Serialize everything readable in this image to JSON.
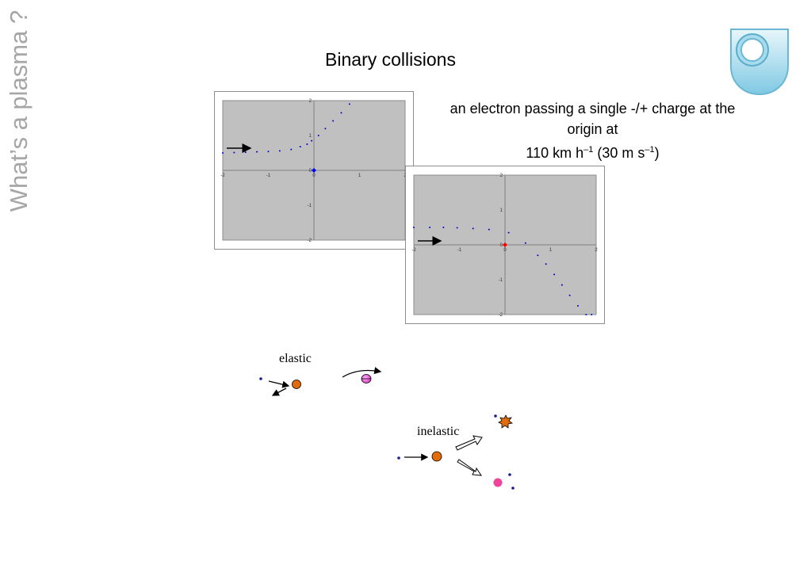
{
  "sidebar": {
    "title": "What’s a plasma ?"
  },
  "header": {
    "title": "Binary collisions"
  },
  "description": {
    "line1": "an electron passing a single -/+ charge at the",
    "line2": "origin at",
    "line3_main": "110 km h",
    "line3_exp1": "–1",
    "line3_mid": " (30 m s",
    "line3_exp2": "–1",
    "line3_end": ")"
  },
  "logo": {
    "icon": "open-university-shield-icon"
  },
  "chart_data": [
    {
      "type": "scatter",
      "title": "",
      "xlim": [
        -2,
        2
      ],
      "ylim": [
        -2,
        2
      ],
      "x_ticks": [
        "-2",
        "-1",
        "0",
        "1",
        "2"
      ],
      "y_ticks": [
        "2",
        "1",
        "0",
        "-1",
        "-2"
      ],
      "plot_bg": "#c0c0c0",
      "series": [
        {
          "color": "#0000cc",
          "x": [
            -2.0,
            -1.75,
            -1.5,
            -1.25,
            -1.0,
            -0.75,
            -0.5,
            -0.3,
            -0.15,
            -0.05,
            0.1,
            0.25,
            0.42,
            0.6,
            0.78
          ],
          "y": [
            0.5,
            0.51,
            0.52,
            0.53,
            0.54,
            0.56,
            0.6,
            0.68,
            0.75,
            0.85,
            1.0,
            1.2,
            1.42,
            1.65,
            1.9
          ]
        },
        {
          "color": "#0000ff",
          "x": [
            0
          ],
          "y": [
            0
          ]
        }
      ]
    },
    {
      "type": "scatter",
      "title": "",
      "xlim": [
        -2,
        2
      ],
      "ylim": [
        -2,
        2
      ],
      "x_ticks": [
        "-2",
        "-1",
        "0",
        "1",
        "2"
      ],
      "y_ticks": [
        "2",
        "1",
        "0",
        "-1",
        "-2"
      ],
      "plot_bg": "#c0c0c0",
      "series": [
        {
          "color": "#0000cc",
          "x": [
            -2.0,
            -1.65,
            -1.35,
            -1.05,
            -0.7,
            -0.35,
            0.08,
            0.45,
            0.72,
            0.9,
            1.08,
            1.25,
            1.42,
            1.6,
            1.78,
            1.9
          ],
          "y": [
            0.5,
            0.5,
            0.5,
            0.49,
            0.47,
            0.44,
            0.35,
            0.05,
            -0.3,
            -0.55,
            -0.85,
            -1.15,
            -1.45,
            -1.75,
            -2.0,
            -2.0
          ]
        },
        {
          "color": "#ff0000",
          "x": [
            0
          ],
          "y": [
            0
          ]
        }
      ]
    }
  ],
  "diagram": {
    "elastic_label": "elastic",
    "inelastic_label": "inelastic",
    "colors": {
      "electron": "#1a1a8c",
      "ion": "#e36c0a",
      "excited": "#ee4499"
    }
  }
}
